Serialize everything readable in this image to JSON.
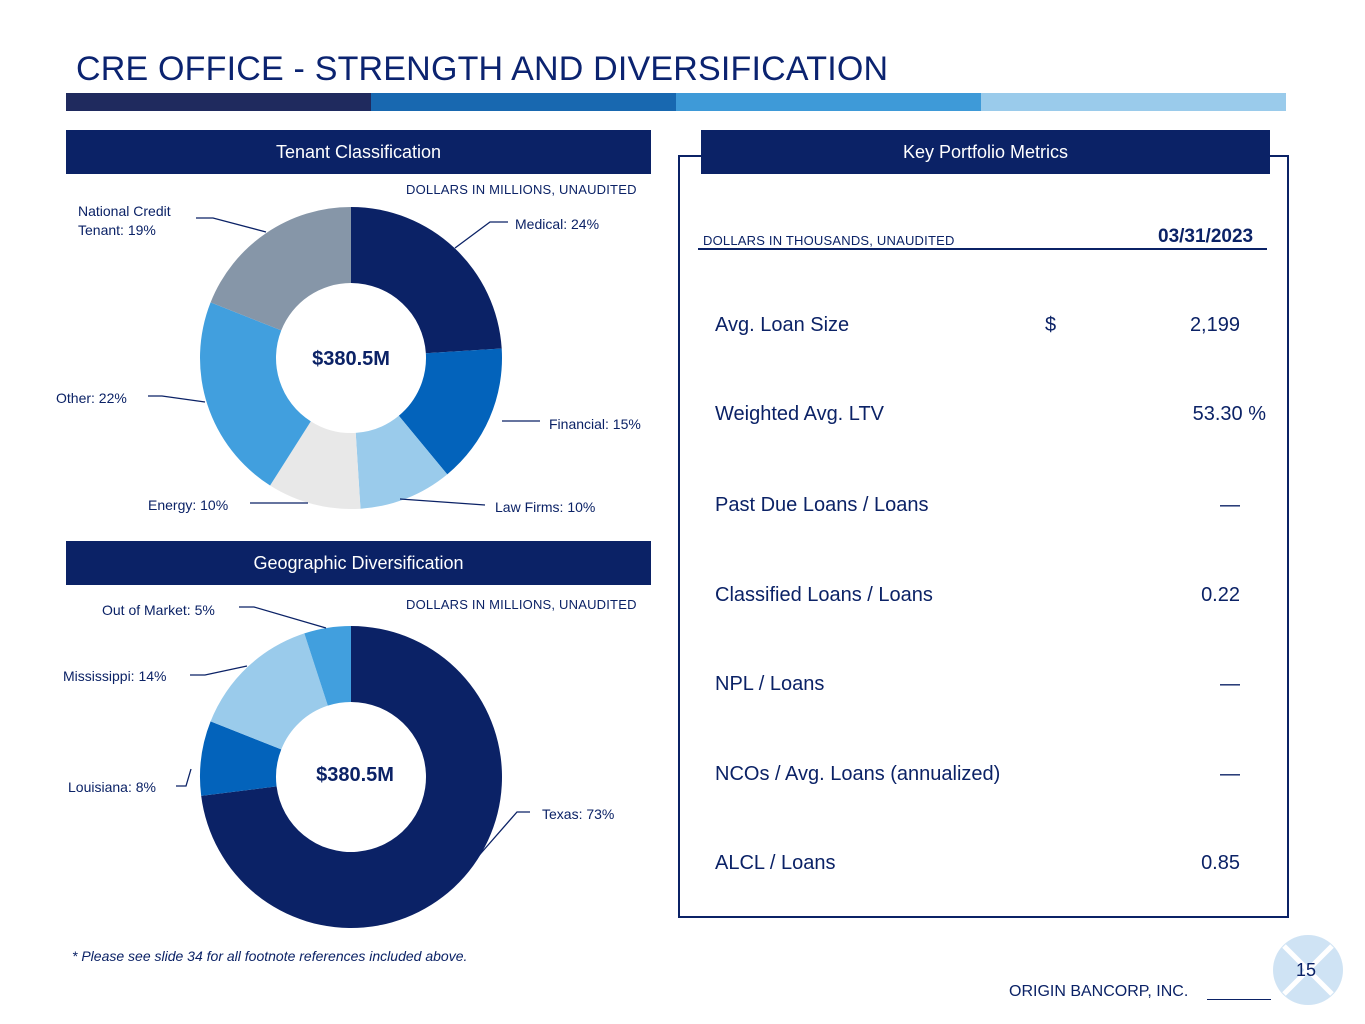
{
  "title": "CRE OFFICE - STRENGTH AND DIVERSIFICATION",
  "colors": {
    "navy": "#0b2266",
    "blue": "#0363bb",
    "mid_blue": "#419fde",
    "light_blue": "#9acbeb",
    "gray": "#8696a8",
    "light_gray": "#e8e8e8",
    "stripe": [
      "#1f2a5e",
      "#1868b0",
      "#3e9ad8",
      "#9acbeb"
    ]
  },
  "tenant": {
    "header": "Tenant Classification",
    "note": "DOLLARS IN MILLIONS, UNAUDITED"
  },
  "geo": {
    "header": "Geographic Diversification",
    "note": "DOLLARS IN MILLIONS, UNAUDITED"
  },
  "chart_data": [
    {
      "type": "pie",
      "subtype": "donut",
      "title": "Tenant Classification",
      "center_label": "$380.5M",
      "categories": [
        "Medical",
        "Financial",
        "Law Firms",
        "Energy",
        "Other",
        "National Credit Tenant"
      ],
      "values": [
        24,
        15,
        10,
        10,
        22,
        19
      ],
      "unit": "%",
      "labels": [
        "Medical: 24%",
        "Financial: 15%",
        "Law Firms: 10%",
        "Energy: 10%",
        "Other: 22%",
        "National Credit Tenant: 19%"
      ],
      "colors": [
        "#0b2266",
        "#0363bb",
        "#9acbeb",
        "#e8e8e8",
        "#419fde",
        "#8696a8"
      ]
    },
    {
      "type": "pie",
      "subtype": "donut",
      "title": "Geographic Diversification",
      "center_label": "$380.5M",
      "categories": [
        "Texas",
        "Louisiana",
        "Mississippi",
        "Out of Market"
      ],
      "values": [
        73,
        8,
        14,
        5
      ],
      "unit": "%",
      "labels": [
        "Texas: 73%",
        "Louisiana: 8%",
        "Mississippi: 14%",
        "Out of Market: 5%"
      ],
      "colors": [
        "#0b2266",
        "#0363bb",
        "#9acbeb",
        "#419fde"
      ]
    }
  ],
  "metrics": {
    "header": "Key Portfolio Metrics",
    "note": "DOLLARS IN THOUSANDS, UNAUDITED",
    "as_of": "03/31/2023",
    "rows": [
      {
        "label": "Avg. Loan Size",
        "currency": "$",
        "value": "2,199"
      },
      {
        "label": "Weighted Avg. LTV",
        "currency": "",
        "value": "53.30 %"
      },
      {
        "label": "Past Due Loans / Loans",
        "currency": "",
        "value": "—"
      },
      {
        "label": "Classified Loans / Loans",
        "currency": "",
        "value": "0.22"
      },
      {
        "label": "NPL / Loans",
        "currency": "",
        "value": "—"
      },
      {
        "label": "NCOs / Avg. Loans (annualized)",
        "currency": "",
        "value": "—"
      },
      {
        "label": "ALCL / Loans",
        "currency": "",
        "value": "0.85"
      }
    ]
  },
  "footnote": "* Please see slide 34 for all footnote references included above.",
  "company": "ORIGIN BANCORP, INC.",
  "page_number": "15"
}
